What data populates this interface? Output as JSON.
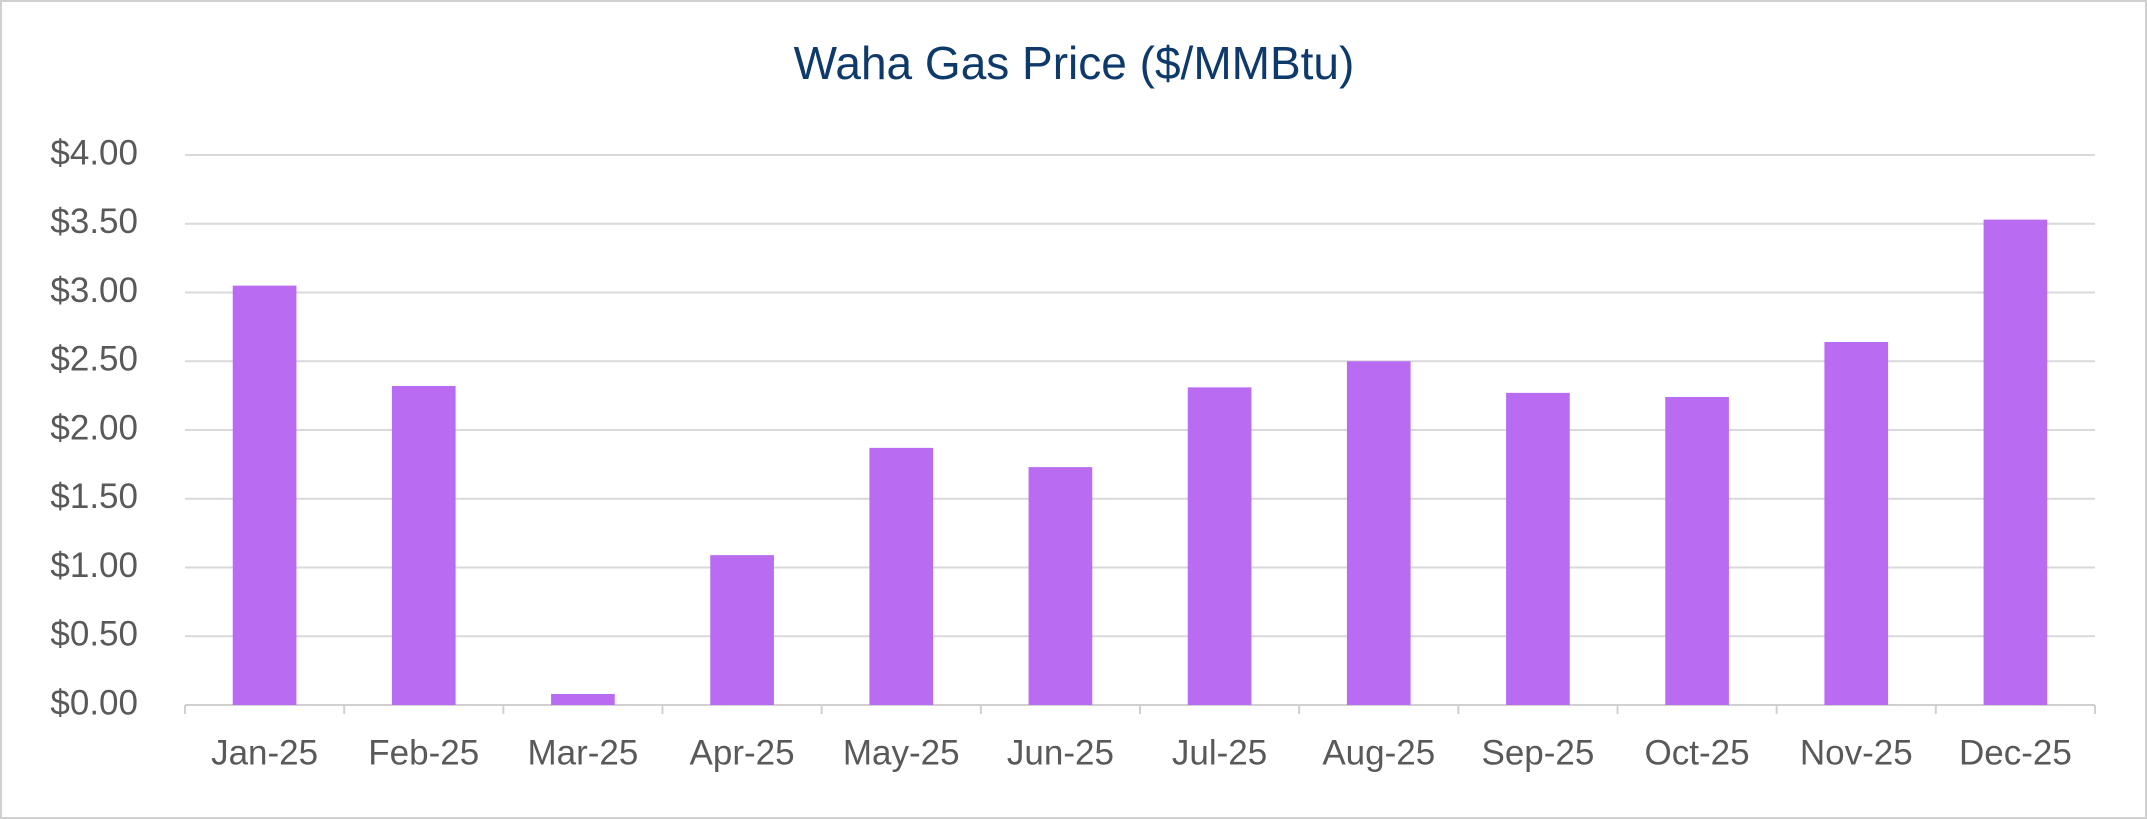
{
  "chart_data": {
    "type": "bar",
    "title": "Waha Gas Price ($/MMBtu)",
    "categories": [
      "Jan-25",
      "Feb-25",
      "Mar-25",
      "Apr-25",
      "May-25",
      "Jun-25",
      "Jul-25",
      "Aug-25",
      "Sep-25",
      "Oct-25",
      "Nov-25",
      "Dec-25"
    ],
    "values": [
      3.05,
      2.32,
      0.08,
      1.09,
      1.87,
      1.73,
      2.31,
      2.5,
      2.27,
      2.24,
      2.64,
      3.53
    ],
    "color": "#b96cf2",
    "ylim": [
      0,
      4
    ],
    "yticks": [
      {
        "value": 0,
        "label": "$0.00"
      },
      {
        "value": 0.5,
        "label": "$0.50"
      },
      {
        "value": 1,
        "label": "$1.00"
      },
      {
        "value": 1.5,
        "label": "$1.50"
      },
      {
        "value": 2,
        "label": "$2.00"
      },
      {
        "value": 2.5,
        "label": "$2.50"
      },
      {
        "value": 3,
        "label": "$3.00"
      },
      {
        "value": 3.5,
        "label": "$3.50"
      },
      {
        "value": 4,
        "label": "$4.00"
      }
    ],
    "grid": true
  }
}
